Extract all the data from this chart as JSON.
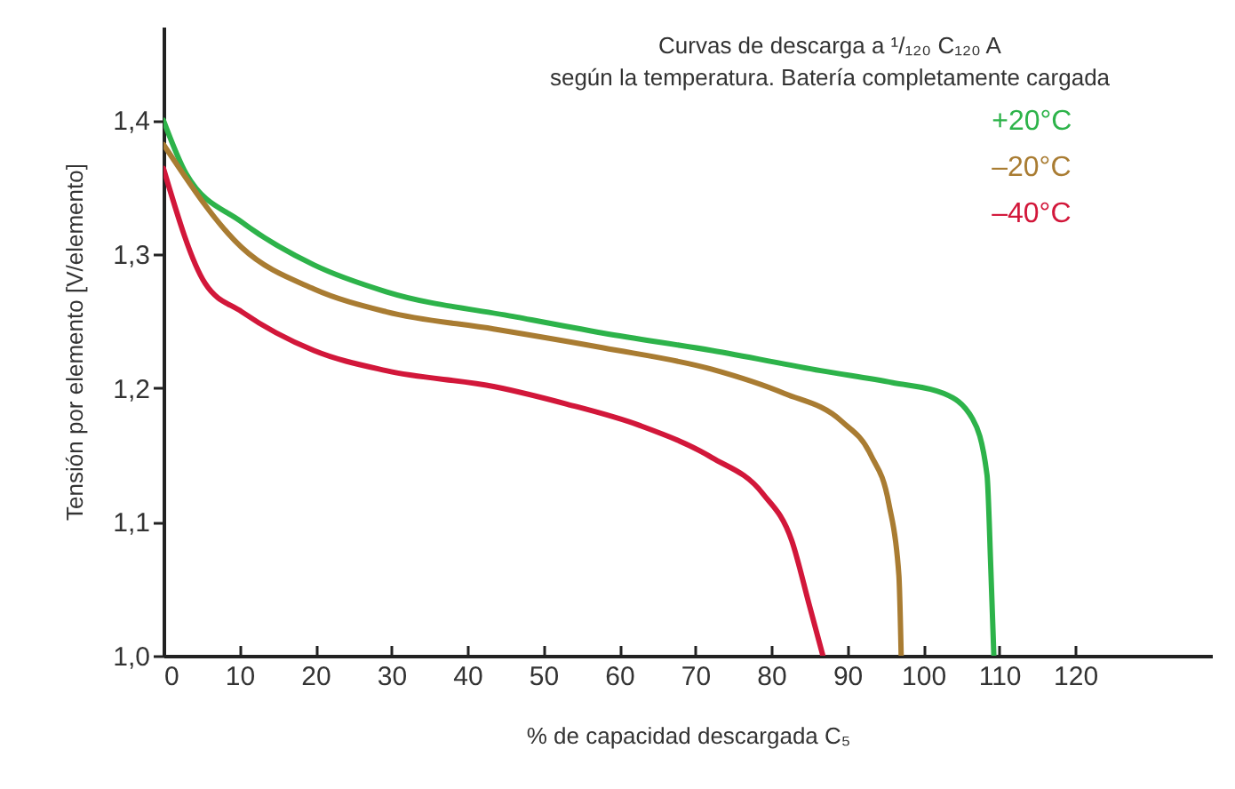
{
  "chart_data": {
    "type": "line",
    "title": "Curvas de descarga a ¹/₁₂₀ C₁₂₀ A\nsegún la temperatura. Batería completamente cargada",
    "xlabel": "% de capacidad descargada C₅",
    "ylabel": "Tensión por elemento [V/elemento]",
    "xlim": [
      0,
      138
    ],
    "xticks": [
      0,
      10,
      20,
      30,
      40,
      50,
      60,
      70,
      80,
      90,
      100,
      110,
      120
    ],
    "ylim": [
      1.0,
      1.47
    ],
    "yticks": [
      {
        "value": 1.0,
        "label": "1,0"
      },
      {
        "value": 1.1,
        "label": "1,1"
      },
      {
        "value": 1.2,
        "label": "1,2"
      },
      {
        "value": 1.3,
        "label": "1,3"
      },
      {
        "value": 1.4,
        "label": "1,4"
      }
    ],
    "grid": false,
    "legend": false,
    "marker": "none",
    "line_style": "solid",
    "series": [
      {
        "name": "+20°C",
        "color": "#2db34a",
        "x": [
          0,
          3,
          10.3,
          19.8,
          29.3,
          46.5,
          57.9,
          72.2,
          86.5,
          96,
          102.7,
          106.5,
          108.4,
          108.9,
          109.3
        ],
        "values": [
          1.4,
          1.36,
          1.324,
          1.292,
          1.272,
          1.253,
          1.241,
          1.228,
          1.213,
          1.204,
          1.196,
          1.177,
          1.135,
          1.065,
          1.0
        ]
      },
      {
        "name": "–20°C",
        "color": "#a97c32",
        "x": [
          0,
          10.3,
          19.8,
          29.3,
          43.6,
          57.9,
          72.2,
          81.7,
          89.3,
          93.1,
          95.5,
          96.8,
          97.1
        ],
        "values": [
          1.382,
          1.305,
          1.274,
          1.257,
          1.244,
          1.23,
          1.214,
          1.196,
          1.175,
          1.15,
          1.113,
          1.06,
          1.0
        ]
      },
      {
        "name": "–40°C",
        "color": "#d2173a",
        "x": [
          0,
          5.5,
          10.3,
          19.8,
          29.3,
          43.6,
          53.1,
          62.7,
          72.2,
          78.9,
          82.7,
          85,
          86.8
        ],
        "values": [
          1.364,
          1.278,
          1.257,
          1.228,
          1.213,
          1.201,
          1.188,
          1.172,
          1.148,
          1.121,
          1.086,
          1.038,
          1.0
        ]
      }
    ]
  }
}
